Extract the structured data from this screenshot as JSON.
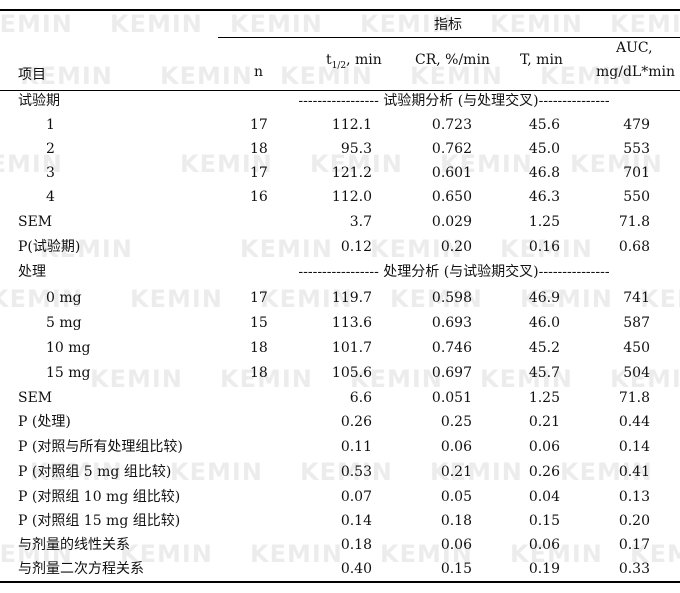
{
  "watermark": "KEMIN",
  "header": {
    "group_label": "指标",
    "item_label": "项目",
    "n_label": "n",
    "thalf_label": "t",
    "thalf_sub": "1/2",
    "thalf_unit": ", min",
    "cr_label": "CR, %/min",
    "t_label": "T, min",
    "auc_line1": "AUC,",
    "auc_line2": "mg/dL*min"
  },
  "sections": {
    "period": {
      "label": "试验期",
      "divider": "----------------- 试验期分析 (与处理交叉)---------------",
      "rows": [
        {
          "label": "1",
          "n": "17",
          "thalf": "112.1",
          "cr": "0.723",
          "t": "45.6",
          "auc": "479"
        },
        {
          "label": "2",
          "n": "18",
          "thalf": "95.3",
          "cr": "0.762",
          "t": "45.0",
          "auc": "553"
        },
        {
          "label": "3",
          "n": "17",
          "thalf": "121.2",
          "cr": "0.601",
          "t": "46.8",
          "auc": "701"
        },
        {
          "label": "4",
          "n": "16",
          "thalf": "112.0",
          "cr": "0.650",
          "t": "46.3",
          "auc": "550"
        }
      ],
      "sem": {
        "label": "SEM",
        "thalf": "3.7",
        "cr": "0.029",
        "t": "1.25",
        "auc": "71.8"
      },
      "p": {
        "label": "P(试验期)",
        "thalf": "0.12",
        "cr": "0.20",
        "t": "0.16",
        "auc": "0.68"
      }
    },
    "treatment": {
      "label": "处理",
      "divider": "----------------- 处理分析 (与试验期交叉)---------------",
      "rows": [
        {
          "label": "0 mg",
          "n": "17",
          "thalf": "119.7",
          "cr": "0.598",
          "t": "46.9",
          "auc": "741"
        },
        {
          "label": "5 mg",
          "n": "15",
          "thalf": "113.6",
          "cr": "0.693",
          "t": "46.0",
          "auc": "587"
        },
        {
          "label": "10 mg",
          "n": "18",
          "thalf": "101.7",
          "cr": "0.746",
          "t": "45.2",
          "auc": "450"
        },
        {
          "label": "15 mg",
          "n": "18",
          "thalf": "105.6",
          "cr": "0.697",
          "t": "45.7",
          "auc": "504"
        }
      ],
      "sem": {
        "label": "SEM",
        "thalf": "6.6",
        "cr": "0.051",
        "t": "1.25",
        "auc": "71.8"
      },
      "p_rows": [
        {
          "label": "P (处理)",
          "thalf": "0.26",
          "cr": "0.25",
          "t": "0.21",
          "auc": "0.44"
        },
        {
          "label": "P (对照与所有处理组比较)",
          "thalf": "0.11",
          "cr": "0.06",
          "t": "0.06",
          "auc": "0.14"
        },
        {
          "label": "P (对照组 5 mg 组比较)",
          "thalf": "0.53",
          "cr": "0.21",
          "t": "0.26",
          "auc": "0.41"
        },
        {
          "label": "P (对照组 10 mg 组比较)",
          "thalf": "0.07",
          "cr": "0.05",
          "t": "0.04",
          "auc": "0.13"
        },
        {
          "label": "P (对照组 15 mg 组比较)",
          "thalf": "0.14",
          "cr": "0.18",
          "t": "0.15",
          "auc": "0.20"
        },
        {
          "label": "与剂量的线性关系",
          "thalf": "0.18",
          "cr": "0.06",
          "t": "0.06",
          "auc": "0.17"
        },
        {
          "label": "与剂量二次方程关系",
          "thalf": "0.40",
          "cr": "0.15",
          "t": "0.19",
          "auc": "0.33"
        }
      ]
    }
  }
}
